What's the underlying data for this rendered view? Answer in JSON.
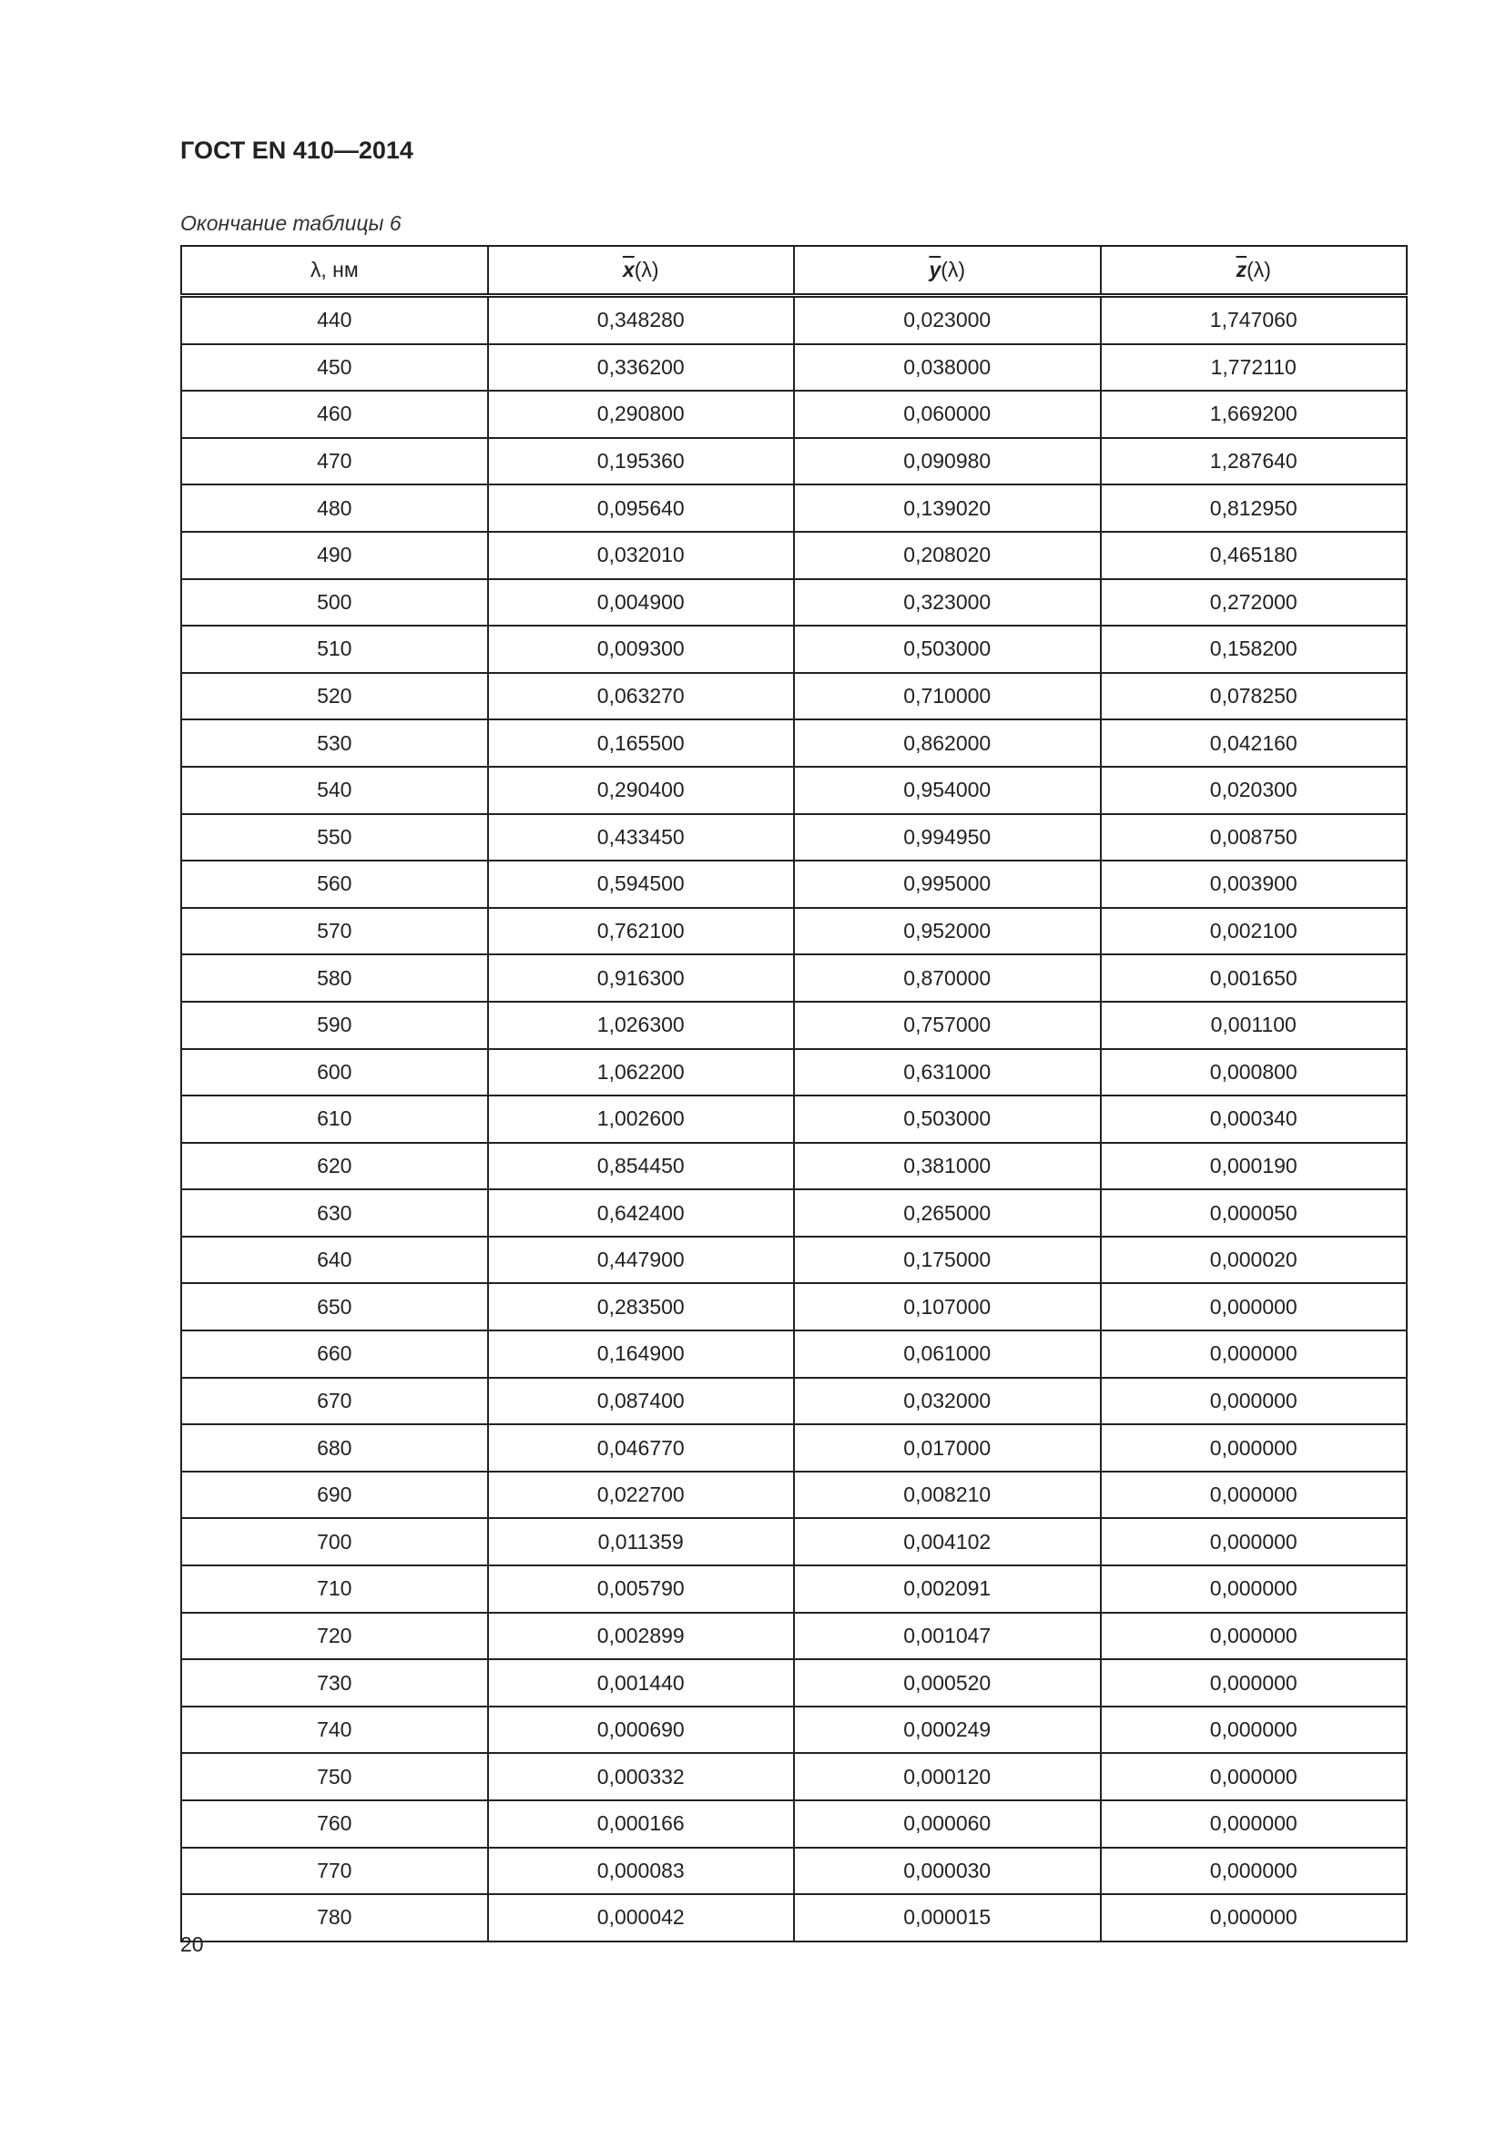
{
  "header": {
    "title": "ГОСТ EN 410—2014"
  },
  "caption": "Окончание таблицы 6",
  "table": {
    "columns": [
      {
        "label": "λ, нм"
      },
      {
        "symbol": "x",
        "arg": "(λ)"
      },
      {
        "symbol": "y",
        "arg": "(λ)"
      },
      {
        "symbol": "z",
        "arg": "(λ)"
      }
    ],
    "rows": [
      [
        "440",
        "0,348280",
        "0,023000",
        "1,747060"
      ],
      [
        "450",
        "0,336200",
        "0,038000",
        "1,772110"
      ],
      [
        "460",
        "0,290800",
        "0,060000",
        "1,669200"
      ],
      [
        "470",
        "0,195360",
        "0,090980",
        "1,287640"
      ],
      [
        "480",
        "0,095640",
        "0,139020",
        "0,812950"
      ],
      [
        "490",
        "0,032010",
        "0,208020",
        "0,465180"
      ],
      [
        "500",
        "0,004900",
        "0,323000",
        "0,272000"
      ],
      [
        "510",
        "0,009300",
        "0,503000",
        "0,158200"
      ],
      [
        "520",
        "0,063270",
        "0,710000",
        "0,078250"
      ],
      [
        "530",
        "0,165500",
        "0,862000",
        "0,042160"
      ],
      [
        "540",
        "0,290400",
        "0,954000",
        "0,020300"
      ],
      [
        "550",
        "0,433450",
        "0,994950",
        "0,008750"
      ],
      [
        "560",
        "0,594500",
        "0,995000",
        "0,003900"
      ],
      [
        "570",
        "0,762100",
        "0,952000",
        "0,002100"
      ],
      [
        "580",
        "0,916300",
        "0,870000",
        "0,001650"
      ],
      [
        "590",
        "1,026300",
        "0,757000",
        "0,001100"
      ],
      [
        "600",
        "1,062200",
        "0,631000",
        "0,000800"
      ],
      [
        "610",
        "1,002600",
        "0,503000",
        "0,000340"
      ],
      [
        "620",
        "0,854450",
        "0,381000",
        "0,000190"
      ],
      [
        "630",
        "0,642400",
        "0,265000",
        "0,000050"
      ],
      [
        "640",
        "0,447900",
        "0,175000",
        "0,000020"
      ],
      [
        "650",
        "0,283500",
        "0,107000",
        "0,000000"
      ],
      [
        "660",
        "0,164900",
        "0,061000",
        "0,000000"
      ],
      [
        "670",
        "0,087400",
        "0,032000",
        "0,000000"
      ],
      [
        "680",
        "0,046770",
        "0,017000",
        "0,000000"
      ],
      [
        "690",
        "0,022700",
        "0,008210",
        "0,000000"
      ],
      [
        "700",
        "0,011359",
        "0,004102",
        "0,000000"
      ],
      [
        "710",
        "0,005790",
        "0,002091",
        "0,000000"
      ],
      [
        "720",
        "0,002899",
        "0,001047",
        "0,000000"
      ],
      [
        "730",
        "0,001440",
        "0,000520",
        "0,000000"
      ],
      [
        "740",
        "0,000690",
        "0,000249",
        "0,000000"
      ],
      [
        "750",
        "0,000332",
        "0,000120",
        "0,000000"
      ],
      [
        "760",
        "0,000166",
        "0,000060",
        "0,000000"
      ],
      [
        "770",
        "0,000083",
        "0,000030",
        "0,000000"
      ],
      [
        "780",
        "0,000042",
        "0,000015",
        "0,000000"
      ]
    ]
  },
  "footer": {
    "page_number": "20"
  }
}
